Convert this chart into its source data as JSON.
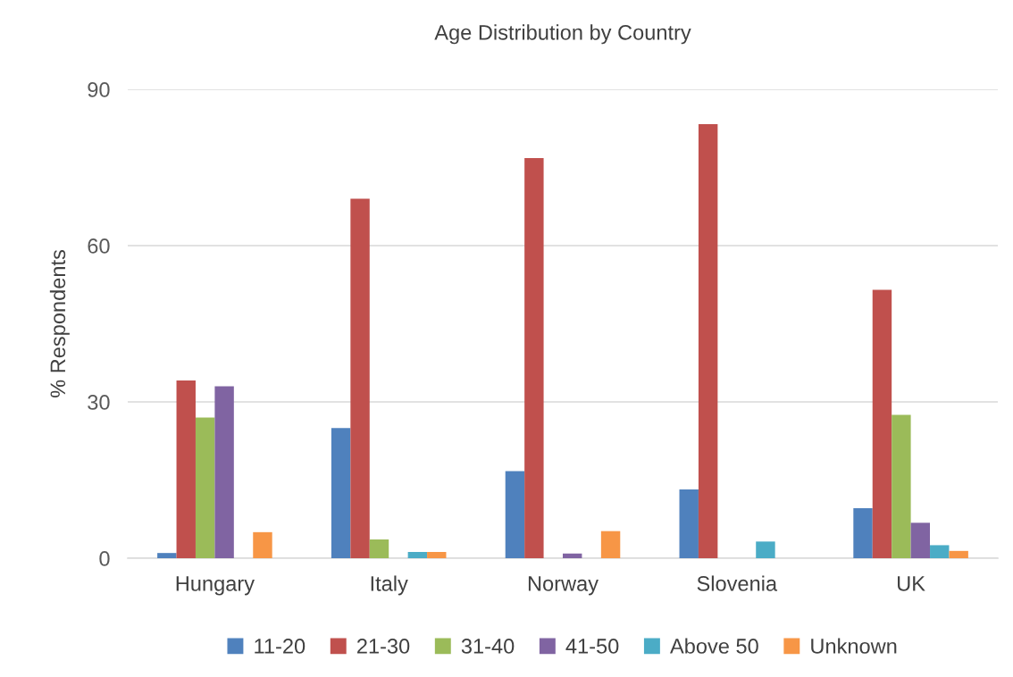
{
  "chart_data": {
    "type": "bar",
    "title": "Age Distribution by Country",
    "ylabel": "% Respondents",
    "categories": [
      "Hungary",
      "Italy",
      "Norway",
      "Slovenia",
      "UK"
    ],
    "series": [
      {
        "name": "11-20",
        "color": "#4f81bd",
        "values": [
          1.0,
          25.0,
          16.7,
          13.2,
          9.6
        ]
      },
      {
        "name": "21-30",
        "color": "#c0504d",
        "values": [
          34.1,
          69.0,
          76.8,
          83.3,
          51.5
        ]
      },
      {
        "name": "31-40",
        "color": "#9bbb59",
        "values": [
          27.0,
          3.6,
          0,
          0,
          27.5
        ]
      },
      {
        "name": "41-50",
        "color": "#8064a2",
        "values": [
          33.0,
          0,
          0.9,
          0,
          6.8
        ]
      },
      {
        "name": "Above 50",
        "color": "#4bacc6",
        "values": [
          0,
          1.2,
          0,
          3.2,
          2.5
        ]
      },
      {
        "name": "Unknown",
        "color": "#f79646",
        "values": [
          5.0,
          1.2,
          5.2,
          0,
          1.4
        ]
      }
    ],
    "ylim": [
      0,
      90
    ],
    "yticks": [
      0,
      30,
      60,
      90
    ],
    "grid": "y",
    "legend": "bottom"
  }
}
